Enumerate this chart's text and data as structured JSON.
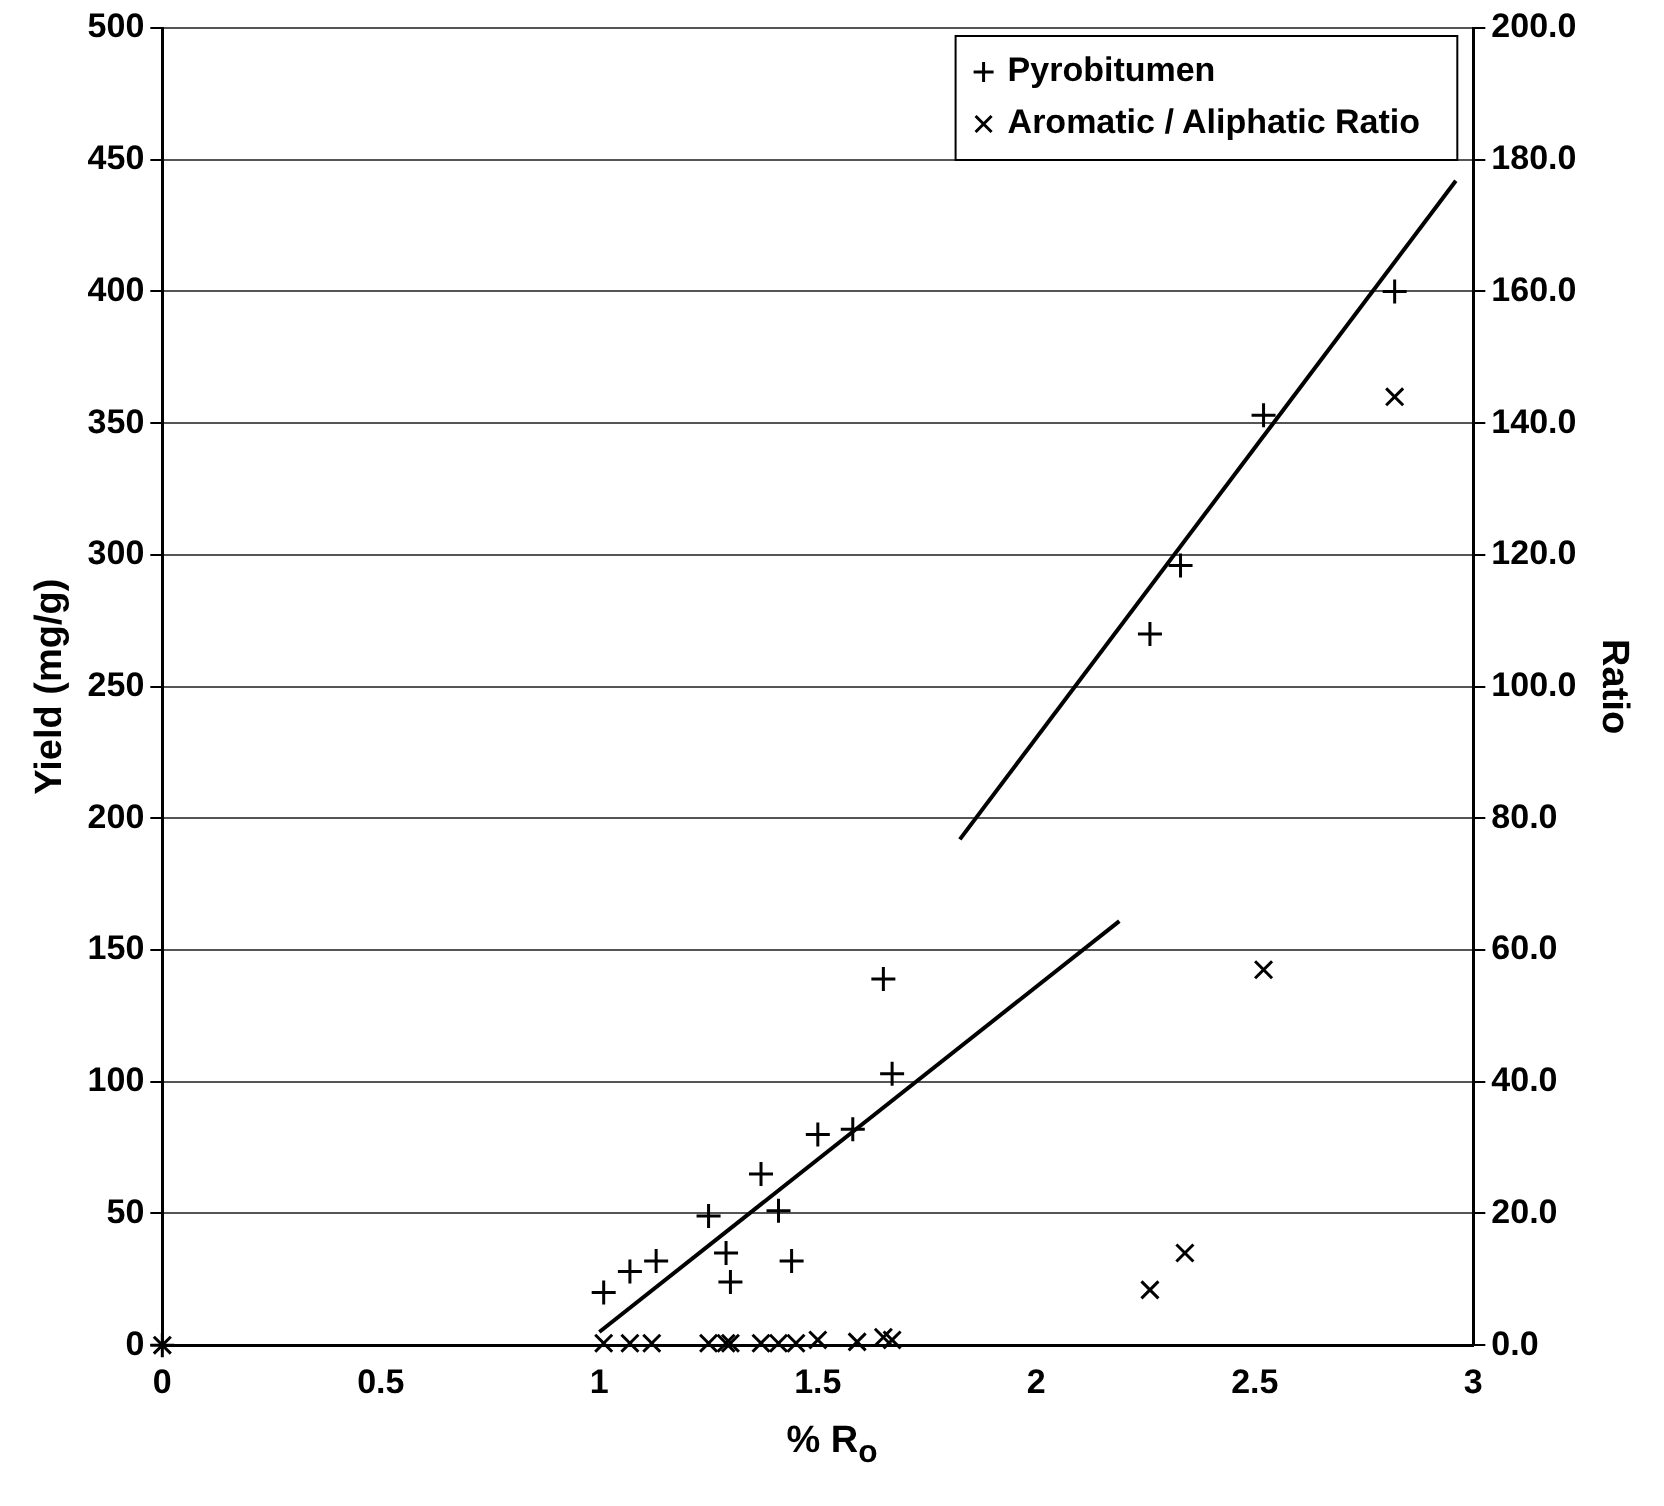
{
  "chart_data": {
    "type": "scatter",
    "xlabel": "% R$_{o}$",
    "ylabel": "Yield (mg/g)",
    "y2label": "Ratio",
    "xlim": [
      0,
      3
    ],
    "xticks": [
      0,
      0.5,
      1,
      1.5,
      2,
      2.5,
      3
    ],
    "ylim": [
      0,
      500
    ],
    "yticks": [
      0,
      50,
      100,
      150,
      200,
      250,
      300,
      350,
      400,
      450,
      500
    ],
    "y2lim": [
      0,
      200
    ],
    "y2ticks": [
      {
        "value": 0,
        "label": "0.0"
      },
      {
        "value": 20,
        "label": "20.0"
      },
      {
        "value": 40,
        "label": "40.0"
      },
      {
        "value": 60,
        "label": "60.0"
      },
      {
        "value": 80,
        "label": "80.0"
      },
      {
        "value": 100,
        "label": "100.0"
      },
      {
        "value": 120,
        "label": "120.0"
      },
      {
        "value": 140,
        "label": "140.0"
      },
      {
        "value": 160,
        "label": "160.0"
      },
      {
        "value": 180,
        "label": "180.0"
      },
      {
        "value": 200,
        "label": "200.0"
      }
    ],
    "grid": "y",
    "legend": "top right",
    "series": [
      {
        "name": "Pyrobitumen",
        "color": "#000000",
        "marker": "cross",
        "x": [
          0,
          1.01,
          1.07,
          1.13,
          1.25,
          1.29,
          1.3,
          1.37,
          1.41,
          1.44,
          1.5,
          1.58,
          1.65,
          1.67,
          2.26,
          2.33,
          2.52,
          2.82
        ],
        "values": [
          0,
          20,
          28,
          32,
          49,
          35,
          24,
          65,
          51,
          32,
          80,
          82,
          139,
          103,
          270,
          296,
          353,
          400
        ]
      },
      {
        "name": "Aromatic / Aliphatic Ratio",
        "color": "#000000",
        "marker": "x",
        "axis": "y2",
        "x": [
          0,
          1.01,
          1.07,
          1.12,
          1.25,
          1.29,
          1.3,
          1.37,
          1.41,
          1.45,
          1.5,
          1.59,
          1.65,
          1.67,
          2.26,
          2.34,
          2.52,
          2.82
        ],
        "values": [
          0,
          0.3,
          0.3,
          0.3,
          0.3,
          0.3,
          0.3,
          0.3,
          0.3,
          0.3,
          0.8,
          0.5,
          1.2,
          0.8,
          8.4,
          14,
          57,
          144
        ]
      },
      {
        "type": "line",
        "color": "#000000",
        "marker": "none",
        "x": [
          1.0,
          2.19
        ],
        "values": [
          5,
          161
        ]
      },
      {
        "type": "line",
        "color": "#000000",
        "marker": "none",
        "x": [
          1.825,
          2.96
        ],
        "values": [
          192,
          442
        ]
      }
    ]
  }
}
